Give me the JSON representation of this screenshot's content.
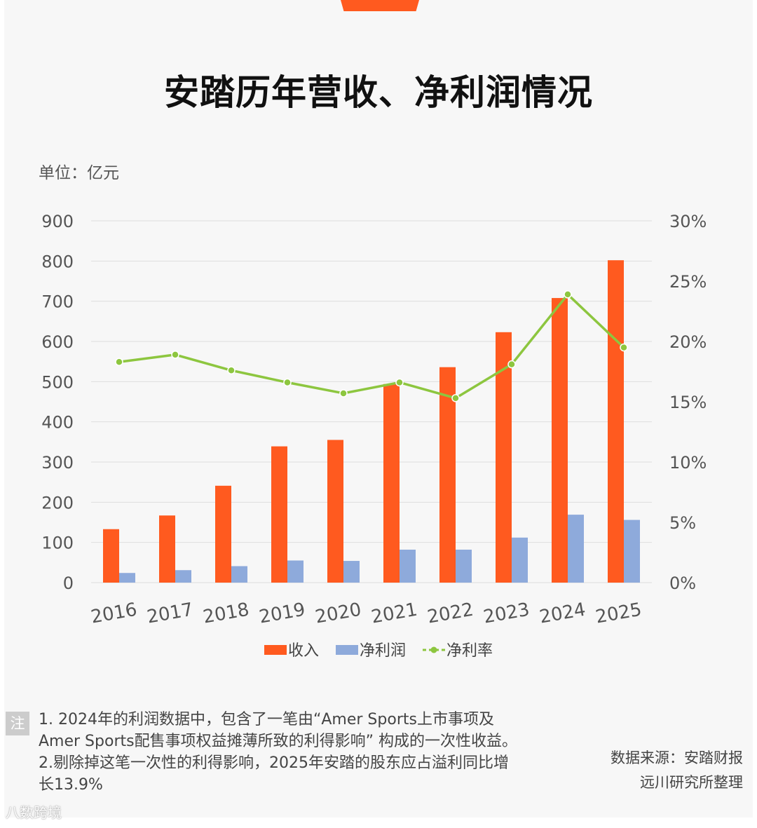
{
  "header": {
    "title": "安踏历年营收、净利润情况",
    "unit": "单位：亿元"
  },
  "chart_data": {
    "type": "bar",
    "categories": [
      "2016",
      "2017",
      "2018",
      "2019",
      "2020",
      "2021",
      "2022",
      "2023",
      "2024",
      "2025"
    ],
    "series": [
      {
        "name": "收入",
        "kind": "bar",
        "axis": "left",
        "color": "#ff5a1f",
        "values": [
          133,
          167,
          241,
          339,
          355,
          494,
          536,
          623,
          708,
          802
        ]
      },
      {
        "name": "净利润",
        "kind": "bar",
        "axis": "left",
        "color": "#8eaadb",
        "values": [
          24,
          31,
          41,
          55,
          54,
          82,
          82,
          112,
          169,
          156
        ]
      },
      {
        "name": "净利率",
        "kind": "line",
        "axis": "right",
        "color": "#8dc63f",
        "values": [
          18.3,
          18.9,
          17.6,
          16.6,
          15.7,
          16.6,
          15.3,
          18.1,
          23.9,
          19.5
        ]
      }
    ],
    "y_left": {
      "min": 0,
      "max": 900,
      "ticks": [
        "0",
        "100",
        "200",
        "300",
        "400",
        "500",
        "600",
        "700",
        "800",
        "900"
      ]
    },
    "y_right": {
      "min": 0,
      "max": 30,
      "ticks": [
        "0%",
        "5%",
        "10%",
        "15%",
        "20%",
        "25%",
        "30%"
      ]
    },
    "legend": [
      "收入",
      "净利润",
      "净利率"
    ],
    "legend_position": "bottom",
    "grid": true
  },
  "notes": {
    "label": "注",
    "line1": "1. 2024年的利润数据中，包含了一笔由“Amer Sports上市事项及Amer Sports配售事项权益摊薄所致的利得影响” 构成的一次性收益。",
    "line2": "2.剔除掉这笔一次性的利得影响，2025年安踏的股东应占溢利同比增长13.9%"
  },
  "source": {
    "line1": "数据来源：安踏财报",
    "line2": "远川研究所整理"
  },
  "watermark": "八数跨境"
}
